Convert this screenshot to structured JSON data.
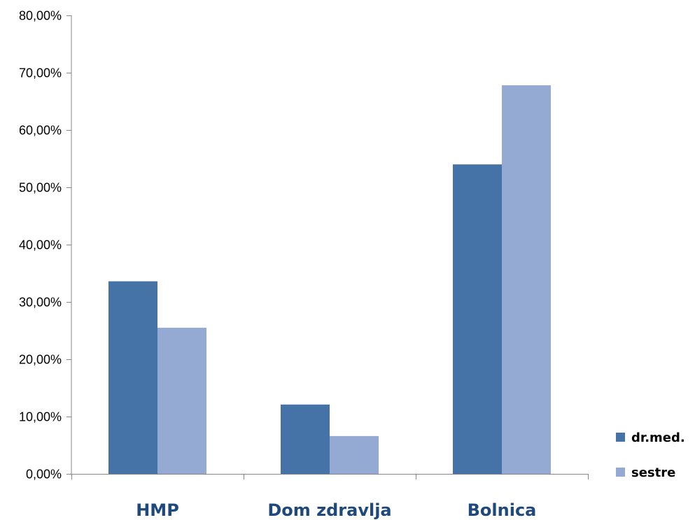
{
  "chart_data": {
    "type": "bar",
    "categories": [
      "HMP",
      "Dom zdravlja",
      "Bolnica"
    ],
    "series": [
      {
        "name": "dr.med.",
        "values": [
          33.6,
          12.1,
          54.0
        ],
        "color": "#4572A7"
      },
      {
        "name": "sestre",
        "values": [
          25.5,
          6.6,
          67.8
        ],
        "color": "#95AAD2"
      }
    ],
    "ylim": [
      0,
      80
    ],
    "yticks": [
      0,
      10,
      20,
      30,
      40,
      50,
      60,
      70,
      80
    ],
    "ytick_labels": [
      "0,00%",
      "10,00%",
      "20,00%",
      "30,00%",
      "40,00%",
      "50,00%",
      "60,00%",
      "70,00%",
      "80,00%"
    ],
    "category_label_color": "#1F497D",
    "title": "",
    "xlabel": "",
    "ylabel": "",
    "grid": false,
    "legend_position": "right"
  }
}
